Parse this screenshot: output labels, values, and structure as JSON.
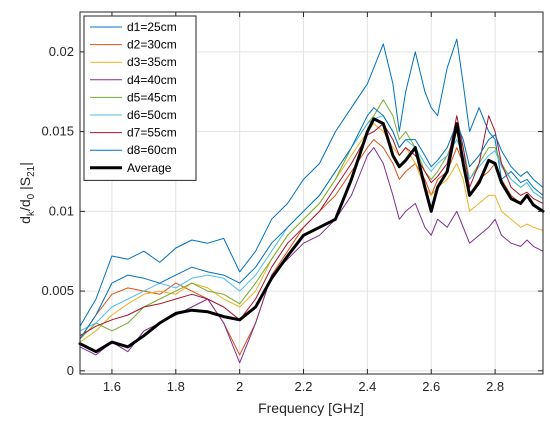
{
  "chart_data": {
    "type": "line",
    "title": "",
    "xlabel": "Frequency [GHz]",
    "ylabel_parts": [
      "d",
      "k",
      "/d",
      "0",
      " |S",
      "21",
      "|"
    ],
    "xlim": [
      1.5,
      2.95
    ],
    "ylim": [
      -0.0002,
      0.0225
    ],
    "x_ticks": [
      1.6,
      1.8,
      2,
      2.2,
      2.4,
      2.6,
      2.8
    ],
    "x_tick_labels": [
      "1.6",
      "1.8",
      "2",
      "2.2",
      "2.4",
      "2.6",
      "2.8"
    ],
    "y_ticks": [
      0,
      0.005,
      0.01,
      0.015,
      0.02
    ],
    "y_tick_labels": [
      "0",
      "0.005",
      "0.01",
      "0.015",
      "0.02"
    ],
    "grid": true,
    "legend_position": "top-left",
    "x": [
      1.5,
      1.55,
      1.6,
      1.65,
      1.7,
      1.75,
      1.8,
      1.85,
      1.9,
      1.95,
      2.0,
      2.05,
      2.1,
      2.15,
      2.2,
      2.25,
      2.3,
      2.35,
      2.4,
      2.42,
      2.45,
      2.48,
      2.5,
      2.52,
      2.55,
      2.58,
      2.6,
      2.62,
      2.65,
      2.68,
      2.7,
      2.72,
      2.75,
      2.78,
      2.8,
      2.82,
      2.85,
      2.88,
      2.9,
      2.92,
      2.95
    ],
    "series": [
      {
        "name": "d1=25cm",
        "color": "#0072BD",
        "width": 1,
        "values": [
          0.0028,
          0.0045,
          0.0072,
          0.007,
          0.0075,
          0.0068,
          0.0077,
          0.0082,
          0.008,
          0.0083,
          0.0062,
          0.0075,
          0.0095,
          0.0105,
          0.012,
          0.013,
          0.015,
          0.0165,
          0.018,
          0.019,
          0.0205,
          0.018,
          0.015,
          0.0175,
          0.02,
          0.0175,
          0.0165,
          0.016,
          0.019,
          0.0208,
          0.018,
          0.015,
          0.0165,
          0.015,
          0.0145,
          0.012,
          0.0125,
          0.0118,
          0.012,
          0.0115,
          0.011
        ]
      },
      {
        "name": "d2=30cm",
        "color": "#D95319",
        "width": 1,
        "values": [
          0.002,
          0.0035,
          0.0048,
          0.0052,
          0.005,
          0.0048,
          0.0055,
          0.005,
          0.0045,
          0.003,
          0.001,
          0.003,
          0.006,
          0.0075,
          0.009,
          0.01,
          0.011,
          0.0125,
          0.014,
          0.0145,
          0.014,
          0.013,
          0.012,
          0.0125,
          0.013,
          0.012,
          0.011,
          0.012,
          0.0125,
          0.014,
          0.013,
          0.011,
          0.012,
          0.0125,
          0.013,
          0.012,
          0.011,
          0.0105,
          0.011,
          0.0105,
          0.01
        ]
      },
      {
        "name": "d3=35cm",
        "color": "#EDB120",
        "width": 1,
        "values": [
          0.0018,
          0.0025,
          0.0035,
          0.0042,
          0.0048,
          0.005,
          0.0048,
          0.0055,
          0.0052,
          0.0045,
          0.004,
          0.005,
          0.007,
          0.0085,
          0.0095,
          0.0105,
          0.012,
          0.0135,
          0.015,
          0.0155,
          0.015,
          0.014,
          0.0135,
          0.014,
          0.013,
          0.0115,
          0.011,
          0.0115,
          0.012,
          0.013,
          0.012,
          0.01,
          0.0105,
          0.011,
          0.011,
          0.01,
          0.0095,
          0.009,
          0.0092,
          0.009,
          0.0088
        ]
      },
      {
        "name": "d4=40cm",
        "color": "#7E2F8E",
        "width": 1,
        "values": [
          0.0015,
          0.001,
          0.0018,
          0.0012,
          0.0025,
          0.003,
          0.0035,
          0.004,
          0.0045,
          0.003,
          0.0005,
          0.003,
          0.006,
          0.007,
          0.008,
          0.0085,
          0.0095,
          0.011,
          0.0135,
          0.014,
          0.013,
          0.011,
          0.0095,
          0.01,
          0.0105,
          0.009,
          0.0085,
          0.0095,
          0.009,
          0.01,
          0.009,
          0.008,
          0.0085,
          0.009,
          0.0095,
          0.0085,
          0.008,
          0.0078,
          0.0082,
          0.0078,
          0.0075
        ]
      },
      {
        "name": "d5=45cm",
        "color": "#77AC30",
        "width": 1,
        "values": [
          0.002,
          0.003,
          0.0025,
          0.003,
          0.004,
          0.0045,
          0.005,
          0.0055,
          0.005,
          0.0048,
          0.0042,
          0.0055,
          0.007,
          0.0085,
          0.0095,
          0.0105,
          0.012,
          0.014,
          0.0155,
          0.016,
          0.017,
          0.016,
          0.0145,
          0.015,
          0.014,
          0.0125,
          0.012,
          0.0125,
          0.0135,
          0.015,
          0.014,
          0.012,
          0.013,
          0.014,
          0.014,
          0.013,
          0.012,
          0.0115,
          0.0118,
          0.0112,
          0.0108
        ]
      },
      {
        "name": "d6=50cm",
        "color": "#4DBEEE",
        "width": 1,
        "values": [
          0.0025,
          0.003,
          0.004,
          0.0045,
          0.005,
          0.0055,
          0.0052,
          0.0058,
          0.006,
          0.0058,
          0.005,
          0.006,
          0.0075,
          0.009,
          0.01,
          0.011,
          0.0125,
          0.014,
          0.0155,
          0.0158,
          0.016,
          0.015,
          0.014,
          0.0145,
          0.014,
          0.013,
          0.0125,
          0.013,
          0.0135,
          0.0145,
          0.0135,
          0.012,
          0.0128,
          0.0135,
          0.0138,
          0.0128,
          0.012,
          0.0115,
          0.0118,
          0.0112,
          0.0108
        ]
      },
      {
        "name": "d7=55cm",
        "color": "#A2142F",
        "width": 1,
        "values": [
          0.0022,
          0.0028,
          0.0032,
          0.0035,
          0.004,
          0.0042,
          0.0045,
          0.0048,
          0.0045,
          0.004,
          0.0032,
          0.0045,
          0.0065,
          0.008,
          0.009,
          0.01,
          0.0115,
          0.013,
          0.0148,
          0.015,
          0.0155,
          0.0145,
          0.0135,
          0.014,
          0.0135,
          0.0125,
          0.0118,
          0.0122,
          0.013,
          0.016,
          0.014,
          0.0115,
          0.013,
          0.016,
          0.015,
          0.013,
          0.0115,
          0.011,
          0.0112,
          0.0108,
          0.0105
        ]
      },
      {
        "name": "d8=60cm",
        "color": "#0072BD",
        "width": 1,
        "values": [
          0.002,
          0.0035,
          0.0055,
          0.006,
          0.0058,
          0.0055,
          0.006,
          0.0065,
          0.0062,
          0.006,
          0.0055,
          0.0065,
          0.008,
          0.009,
          0.01,
          0.011,
          0.0125,
          0.014,
          0.016,
          0.0165,
          0.016,
          0.015,
          0.014,
          0.0145,
          0.0145,
          0.0135,
          0.0128,
          0.0132,
          0.014,
          0.0155,
          0.0145,
          0.0128,
          0.0135,
          0.0145,
          0.0148,
          0.0138,
          0.0128,
          0.0122,
          0.0125,
          0.012,
          0.0115
        ]
      },
      {
        "name": "Average",
        "color": "#000000",
        "width": 3,
        "values": [
          0.0017,
          0.0012,
          0.0018,
          0.0015,
          0.0022,
          0.003,
          0.0036,
          0.0038,
          0.0037,
          0.0034,
          0.0032,
          0.004,
          0.0058,
          0.0072,
          0.0085,
          0.009,
          0.0095,
          0.012,
          0.015,
          0.0158,
          0.0155,
          0.0135,
          0.0128,
          0.0132,
          0.014,
          0.0115,
          0.01,
          0.0115,
          0.0125,
          0.0155,
          0.013,
          0.011,
          0.0118,
          0.0132,
          0.013,
          0.0118,
          0.0108,
          0.0105,
          0.011,
          0.0104,
          0.01
        ]
      }
    ]
  }
}
